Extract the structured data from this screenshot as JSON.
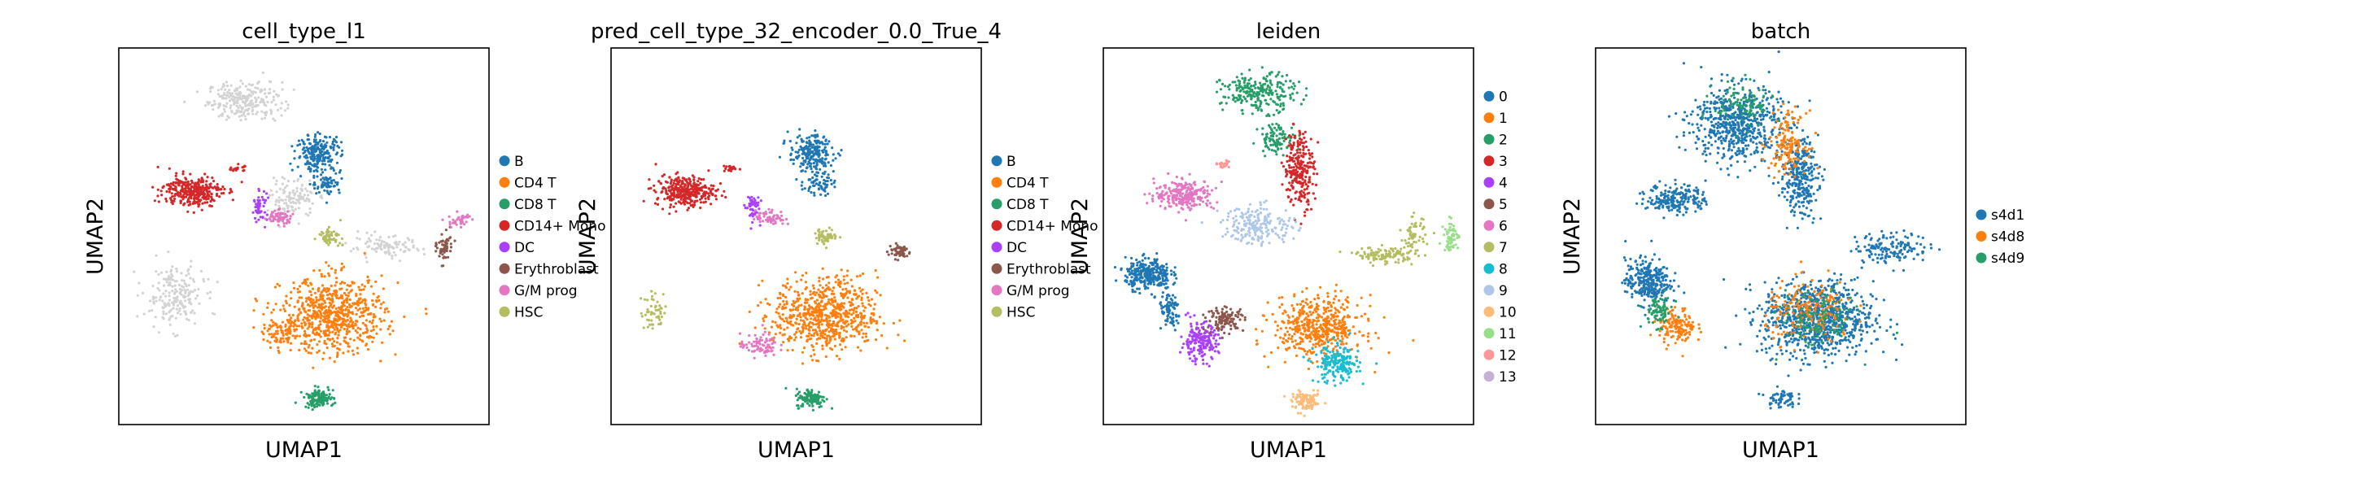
{
  "figure": {
    "panels": [
      {
        "title": "cell_type_l1",
        "xlabel": "UMAP1",
        "ylabel": "UMAP2",
        "legend": [
          {
            "label": "B",
            "color": "#1f77b4"
          },
          {
            "label": "CD4 T",
            "color": "#ff7f0e"
          },
          {
            "label": "CD8 T",
            "color": "#279e68"
          },
          {
            "label": "CD14+ Mono",
            "color": "#d62728"
          },
          {
            "label": "DC",
            "color": "#aa40fc"
          },
          {
            "label": "Erythroblast",
            "color": "#8c564b"
          },
          {
            "label": "G/M prog",
            "color": "#e377c2"
          },
          {
            "label": "HSC",
            "color": "#b5bd61"
          }
        ]
      },
      {
        "title": "pred_cell_type_32_encoder_0.0_True_4",
        "xlabel": "UMAP1",
        "ylabel": "UMAP2",
        "legend": [
          {
            "label": "B",
            "color": "#1f77b4"
          },
          {
            "label": "CD4 T",
            "color": "#ff7f0e"
          },
          {
            "label": "CD8 T",
            "color": "#279e68"
          },
          {
            "label": "CD14+ Mono",
            "color": "#d62728"
          },
          {
            "label": "DC",
            "color": "#aa40fc"
          },
          {
            "label": "Erythroblast",
            "color": "#8c564b"
          },
          {
            "label": "G/M prog",
            "color": "#e377c2"
          },
          {
            "label": "HSC",
            "color": "#b5bd61"
          }
        ]
      },
      {
        "title": "leiden",
        "xlabel": "UMAP1",
        "ylabel": "UMAP2",
        "legend": [
          {
            "label": "0",
            "color": "#1f77b4"
          },
          {
            "label": "1",
            "color": "#ff7f0e"
          },
          {
            "label": "2",
            "color": "#279e68"
          },
          {
            "label": "3",
            "color": "#d62728"
          },
          {
            "label": "4",
            "color": "#aa40fc"
          },
          {
            "label": "5",
            "color": "#8c564b"
          },
          {
            "label": "6",
            "color": "#e377c2"
          },
          {
            "label": "7",
            "color": "#b5bd61"
          },
          {
            "label": "8",
            "color": "#17becf"
          },
          {
            "label": "9",
            "color": "#aec7e8"
          },
          {
            "label": "10",
            "color": "#ffbb78"
          },
          {
            "label": "11",
            "color": "#98df8a"
          },
          {
            "label": "12",
            "color": "#ff9896"
          },
          {
            "label": "13",
            "color": "#c5b0d5"
          }
        ]
      },
      {
        "title": "batch",
        "xlabel": "UMAP1",
        "ylabel": "UMAP2",
        "legend": [
          {
            "label": "s4d1",
            "color": "#1f77b4"
          },
          {
            "label": "s4d8",
            "color": "#ff7f0e"
          },
          {
            "label": "s4d9",
            "color": "#279e68"
          }
        ]
      }
    ]
  },
  "chart_data": [
    {
      "type": "scatter",
      "title": "cell_type_l1",
      "xlabel": "UMAP1",
      "ylabel": "UMAP2",
      "ticks": "none",
      "legend_placement": "right",
      "unassigned_color": "#d3d3d3",
      "groups": [
        {
          "name": "B",
          "color": "#1f77b4",
          "clusters": [
            [
              0.54,
              0.72,
              0.06,
              0.05,
              220
            ],
            [
              0.56,
              0.64,
              0.04,
              0.03,
              60
            ]
          ]
        },
        {
          "name": "CD4 T",
          "color": "#ff7f0e",
          "clusters": [
            [
              0.58,
              0.29,
              0.14,
              0.1,
              700
            ],
            [
              0.44,
              0.24,
              0.05,
              0.03,
              80
            ]
          ]
        },
        {
          "name": "CD8 T",
          "color": "#279e68",
          "clusters": [
            [
              0.54,
              0.07,
              0.04,
              0.025,
              120
            ]
          ]
        },
        {
          "name": "CD14+ Mono",
          "color": "#d62728",
          "clusters": [
            [
              0.2,
              0.62,
              0.08,
              0.04,
              320
            ],
            [
              0.32,
              0.68,
              0.02,
              0.01,
              20
            ]
          ]
        },
        {
          "name": "DC",
          "color": "#aa40fc",
          "clusters": [
            [
              0.38,
              0.58,
              0.02,
              0.04,
              50
            ]
          ]
        },
        {
          "name": "Erythroblast",
          "color": "#8c564b",
          "clusters": [
            [
              0.88,
              0.47,
              0.02,
              0.04,
              60
            ]
          ]
        },
        {
          "name": "G/M prog",
          "color": "#e377c2",
          "clusters": [
            [
              0.43,
              0.55,
              0.04,
              0.02,
              60
            ],
            [
              0.92,
              0.54,
              0.03,
              0.02,
              40
            ]
          ]
        },
        {
          "name": "HSC",
          "color": "#b5bd61",
          "clusters": [
            [
              0.57,
              0.5,
              0.03,
              0.02,
              60
            ]
          ]
        }
      ]
    },
    {
      "type": "scatter",
      "title": "pred_cell_type_32_encoder_0.0_True_4",
      "xlabel": "UMAP1",
      "ylabel": "UMAP2",
      "ticks": "none",
      "legend_placement": "right",
      "groups": [
        {
          "name": "B",
          "color": "#1f77b4",
          "clusters": [
            [
              0.54,
              0.72,
              0.06,
              0.05,
              220
            ],
            [
              0.56,
              0.64,
              0.04,
              0.03,
              60
            ]
          ]
        },
        {
          "name": "CD4 T",
          "color": "#ff7f0e",
          "clusters": [
            [
              0.58,
              0.29,
              0.14,
              0.1,
              700
            ]
          ]
        },
        {
          "name": "CD8 T",
          "color": "#279e68",
          "clusters": [
            [
              0.54,
              0.07,
              0.04,
              0.025,
              120
            ]
          ]
        },
        {
          "name": "CD14+ Mono",
          "color": "#d62728",
          "clusters": [
            [
              0.2,
              0.62,
              0.08,
              0.04,
              320
            ],
            [
              0.32,
              0.68,
              0.02,
              0.01,
              20
            ]
          ]
        },
        {
          "name": "DC",
          "color": "#aa40fc",
          "clusters": [
            [
              0.38,
              0.58,
              0.02,
              0.04,
              50
            ]
          ]
        },
        {
          "name": "Erythroblast",
          "color": "#8c564b",
          "clusters": [
            [
              0.78,
              0.46,
              0.03,
              0.02,
              60
            ]
          ]
        },
        {
          "name": "G/M prog",
          "color": "#e377c2",
          "clusters": [
            [
              0.4,
              0.21,
              0.05,
              0.03,
              80
            ],
            [
              0.43,
              0.55,
              0.04,
              0.02,
              60
            ]
          ]
        },
        {
          "name": "HSC",
          "color": "#b5bd61",
          "clusters": [
            [
              0.58,
              0.5,
              0.03,
              0.02,
              60
            ],
            [
              0.12,
              0.3,
              0.04,
              0.05,
              50
            ]
          ]
        }
      ]
    },
    {
      "type": "scatter",
      "title": "leiden",
      "xlabel": "UMAP1",
      "ylabel": "UMAP2",
      "ticks": "none",
      "legend_placement": "right",
      "groups": [
        {
          "name": "0",
          "color": "#1f77b4",
          "clusters": [
            [
              0.12,
              0.4,
              0.06,
              0.04,
              300
            ],
            [
              0.18,
              0.3,
              0.03,
              0.05,
              80
            ]
          ]
        },
        {
          "name": "1",
          "color": "#ff7f0e",
          "clusters": [
            [
              0.58,
              0.26,
              0.12,
              0.08,
              500
            ]
          ]
        },
        {
          "name": "2",
          "color": "#279e68",
          "clusters": [
            [
              0.42,
              0.88,
              0.1,
              0.05,
              250
            ],
            [
              0.47,
              0.76,
              0.05,
              0.04,
              100
            ]
          ]
        },
        {
          "name": "3",
          "color": "#d62728",
          "clusters": [
            [
              0.53,
              0.68,
              0.04,
              0.1,
              250
            ]
          ]
        },
        {
          "name": "4",
          "color": "#aa40fc",
          "clusters": [
            [
              0.26,
              0.22,
              0.05,
              0.05,
              200
            ]
          ]
        },
        {
          "name": "5",
          "color": "#8c564b",
          "clusters": [
            [
              0.33,
              0.28,
              0.05,
              0.03,
              120
            ]
          ]
        },
        {
          "name": "6",
          "color": "#e377c2",
          "clusters": [
            [
              0.22,
              0.61,
              0.08,
              0.04,
              250
            ]
          ]
        },
        {
          "name": "7",
          "color": "#b5bd61",
          "clusters": [
            [
              0.76,
              0.45,
              0.08,
              0.02,
              120
            ],
            [
              0.84,
              0.5,
              0.03,
              0.05,
              60
            ]
          ]
        },
        {
          "name": "8",
          "color": "#17becf",
          "clusters": [
            [
              0.63,
              0.16,
              0.06,
              0.05,
              200
            ]
          ]
        },
        {
          "name": "9",
          "color": "#aec7e8",
          "clusters": [
            [
              0.42,
              0.53,
              0.1,
              0.05,
              200
            ]
          ]
        },
        {
          "name": "10",
          "color": "#ffbb78",
          "clusters": [
            [
              0.55,
              0.06,
              0.04,
              0.025,
              100
            ]
          ]
        },
        {
          "name": "11",
          "color": "#98df8a",
          "clusters": [
            [
              0.94,
              0.5,
              0.02,
              0.04,
              60
            ]
          ]
        },
        {
          "name": "12",
          "color": "#ff9896",
          "clusters": [
            [
              0.32,
              0.69,
              0.02,
              0.01,
              20
            ]
          ]
        },
        {
          "name": "13",
          "color": "#c5b0d5",
          "clusters": []
        }
      ]
    },
    {
      "type": "scatter",
      "title": "batch",
      "xlabel": "UMAP1",
      "ylabel": "UMAP2",
      "ticks": "none",
      "legend_placement": "right",
      "groups": [
        {
          "name": "s4d1",
          "color": "#1f77b4",
          "clusters": [
            [
              0.38,
              0.8,
              0.12,
              0.1,
              600
            ],
            [
              0.55,
              0.66,
              0.05,
              0.1,
              300
            ],
            [
              0.22,
              0.6,
              0.08,
              0.04,
              200
            ],
            [
              0.6,
              0.28,
              0.15,
              0.1,
              900
            ],
            [
              0.14,
              0.38,
              0.06,
              0.06,
              300
            ],
            [
              0.8,
              0.47,
              0.1,
              0.04,
              150
            ],
            [
              0.5,
              0.07,
              0.04,
              0.025,
              60
            ]
          ]
        },
        {
          "name": "s4d8",
          "color": "#ff7f0e",
          "clusters": [
            [
              0.22,
              0.26,
              0.05,
              0.05,
              150
            ],
            [
              0.58,
              0.3,
              0.12,
              0.08,
              200
            ],
            [
              0.52,
              0.75,
              0.05,
              0.08,
              150
            ]
          ]
        },
        {
          "name": "s4d9",
          "color": "#279e68",
          "clusters": [
            [
              0.17,
              0.3,
              0.04,
              0.04,
              80
            ],
            [
              0.6,
              0.28,
              0.1,
              0.08,
              120
            ],
            [
              0.4,
              0.85,
              0.08,
              0.06,
              100
            ]
          ]
        }
      ]
    }
  ]
}
